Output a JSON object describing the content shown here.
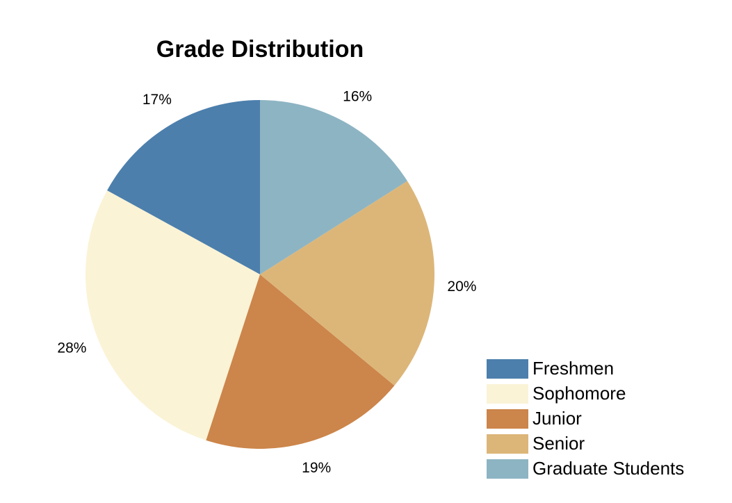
{
  "chart_data": {
    "type": "pie",
    "title": "Grade Distribution",
    "categories": [
      "Freshmen",
      "Sophomore",
      "Junior",
      "Senior",
      "Graduate Students"
    ],
    "values": [
      17,
      28,
      19,
      20,
      16
    ],
    "value_labels": [
      "17%",
      "28%",
      "19%",
      "20%",
      "16%"
    ],
    "colors": [
      "#4c7fac",
      "#faf3d6",
      "#cc854a",
      "#dcb679",
      "#8db4c3"
    ],
    "start_angle_deg": 0,
    "direction": "counterclockwise",
    "legend_position": "bottom-right",
    "legend": [
      "Freshmen",
      "Sophomore",
      "Junior",
      "Senior",
      "Graduate Students"
    ]
  }
}
